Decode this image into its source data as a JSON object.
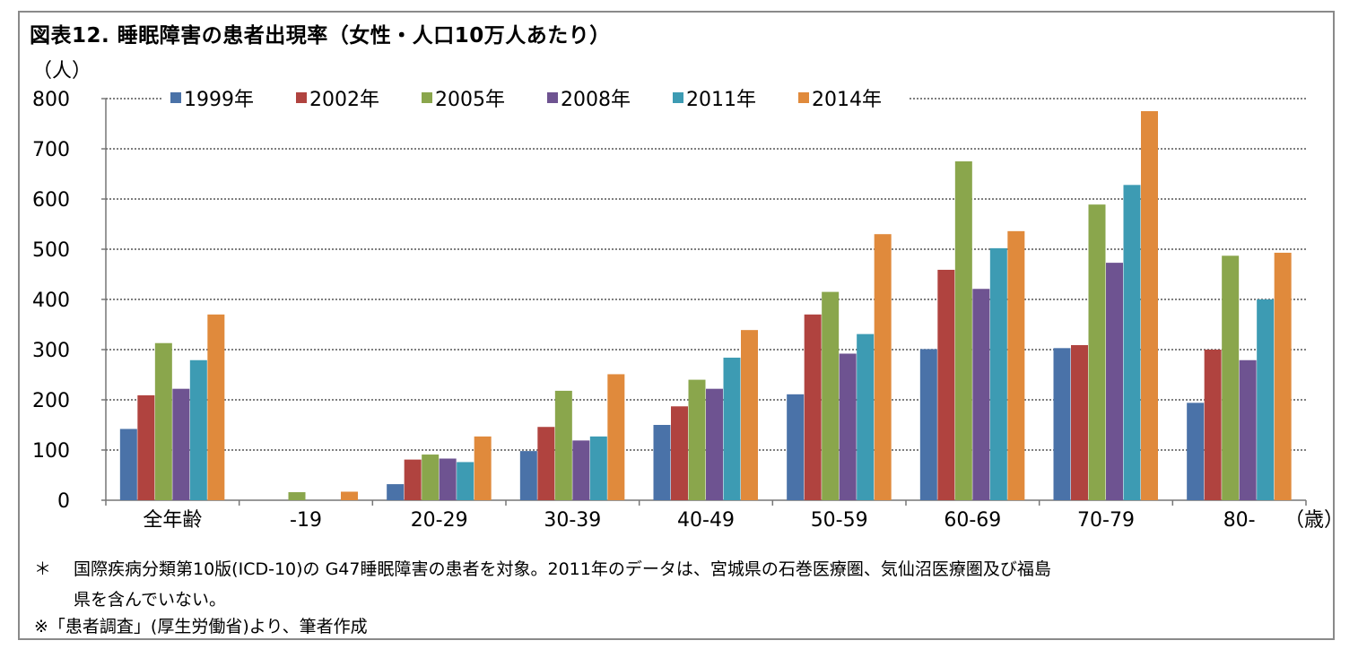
{
  "chart_data": {
    "type": "bar",
    "title": "図表12. 睡眠障害の患者出現率（女性・人口10万人あたり）",
    "ylabel": "（人）",
    "xunit": "（歳）",
    "ylim": [
      0,
      800
    ],
    "yticks": [
      0,
      100,
      200,
      300,
      400,
      500,
      600,
      700,
      800
    ],
    "grid": true,
    "legend_position": "top",
    "categories": [
      "全年齢",
      "-19",
      "20-29",
      "30-39",
      "40-49",
      "50-59",
      "60-69",
      "70-79",
      "80-"
    ],
    "series": [
      {
        "name": "1999年",
        "color": "#4a72a8",
        "values": [
          142,
          0,
          32,
          98,
          150,
          211,
          301,
          303,
          194
        ]
      },
      {
        "name": "2002年",
        "color": "#b0433f",
        "values": [
          209,
          0,
          81,
          146,
          187,
          370,
          459,
          309,
          300
        ]
      },
      {
        "name": "2005年",
        "color": "#8aa64c",
        "values": [
          313,
          16,
          91,
          218,
          240,
          415,
          675,
          589,
          487
        ]
      },
      {
        "name": "2008年",
        "color": "#6e5391",
        "values": [
          222,
          0,
          83,
          119,
          222,
          292,
          421,
          473,
          279
        ]
      },
      {
        "name": "2011年",
        "color": "#3d9bb3",
        "values": [
          279,
          0,
          76,
          127,
          284,
          331,
          502,
          628,
          400
        ]
      },
      {
        "name": "2014年",
        "color": "#e08a3c",
        "values": [
          370,
          17,
          127,
          251,
          339,
          530,
          536,
          775,
          493
        ]
      }
    ]
  },
  "notes": {
    "note1_prefix": "＊",
    "note1": "国際疾病分類第10版(ICD-10)の G47睡眠障害の患者を対象。2011年のデータは、宮城県の石巻医療圏、気仙沼医療圏及び福島",
    "note2": "県を含んでいない。",
    "note3": "※「患者調査」(厚生労働省)より、筆者作成"
  }
}
